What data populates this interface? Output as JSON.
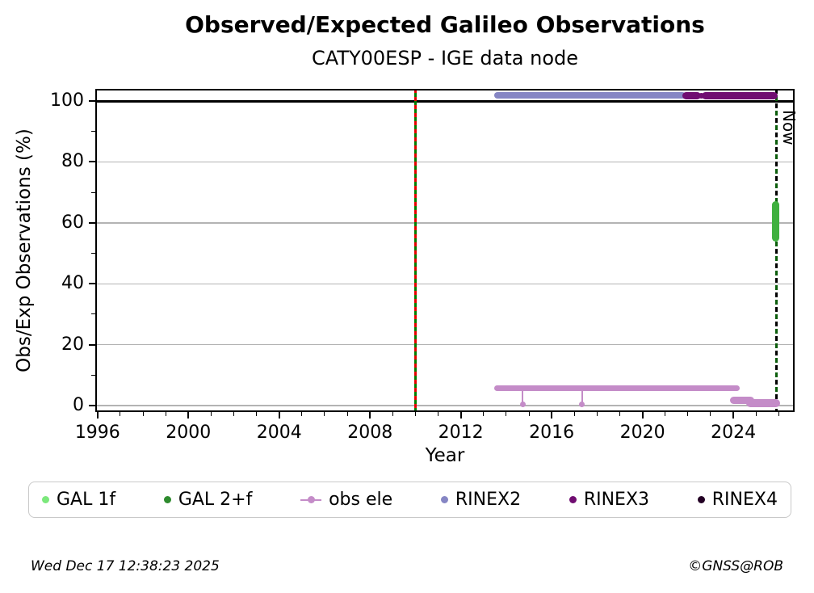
{
  "footer": {
    "timestamp": "Wed Dec 17 12:38:23 2025",
    "credit": "©GNSS@ROB"
  },
  "chart_data": {
    "type": "scatter",
    "title": "Observed/Expected Galileo Observations",
    "subtitle": "CATY00ESP - IGE data node",
    "xlabel": "Year",
    "ylabel": "Obs/Exp Observations (%)",
    "xlim": [
      1995.9,
      2026.7
    ],
    "ylim": [
      -2.1,
      104.0
    ],
    "x_major_ticks": [
      1996,
      2000,
      2004,
      2008,
      2012,
      2016,
      2020,
      2024
    ],
    "x_minor_step": 1,
    "y_major_ticks": [
      0,
      20,
      40,
      60,
      80,
      100
    ],
    "y_minor_step": 10,
    "grid": {
      "light_lines_y": [
        0,
        20,
        40,
        60,
        80
      ],
      "dark_lines_y": [
        100
      ],
      "light_color": "#b3b3b3",
      "dark_color": "#000000"
    },
    "annotations": {
      "deployment_line": {
        "x": 2010.0,
        "base_color": "#007c00",
        "dash_color": "#e60000"
      },
      "now_line": {
        "x": 2025.9,
        "label": "Now",
        "dash_colors": [
          "#000000",
          "#0a5d0a"
        ]
      }
    },
    "series": [
      {
        "name": "GAL 1f",
        "color": "#7ce87c",
        "marker": "dot",
        "segments": [],
        "points": [],
        "drops": [],
        "vclusters": []
      },
      {
        "name": "GAL 2+f",
        "color": "#2e8b2e",
        "plot_color": "#3fb03f",
        "marker": "dot",
        "segments": [],
        "points": [],
        "drops": [],
        "vclusters": [
          {
            "x": 2025.85,
            "y1": 55.0,
            "y2": 66.0,
            "w": 9
          }
        ]
      },
      {
        "name": "obs ele",
        "color": "#c48cc8",
        "marker": "dot-line",
        "segments": [
          {
            "x1": 2013.6,
            "x2": 2024.15,
            "y": 5.8,
            "w": 7
          },
          {
            "x1": 2024.0,
            "x2": 2024.75,
            "y": 1.8,
            "w": 9
          },
          {
            "x1": 2024.75,
            "x2": 2025.88,
            "y": 0.9,
            "w": 10
          }
        ],
        "points": [],
        "drops": [
          {
            "x": 2014.73,
            "y_top": 5.8,
            "y_bot": 0.5
          },
          {
            "x": 2017.33,
            "y_top": 5.8,
            "y_bot": 0.5
          }
        ],
        "vclusters": []
      },
      {
        "name": "RINEX2",
        "color": "#8686c4",
        "marker": "dot",
        "segments": [
          {
            "x1": 2013.6,
            "x2": 2021.77,
            "y": 101.8,
            "w": 8
          }
        ],
        "points": [],
        "drops": [],
        "vclusters": []
      },
      {
        "name": "RINEX3",
        "color": "#700d71",
        "marker": "dot",
        "segments": [
          {
            "x1": 2021.9,
            "x2": 2022.4,
            "y": 101.8,
            "w": 9
          },
          {
            "x1": 2022.76,
            "x2": 2025.8,
            "y": 101.8,
            "w": 9
          }
        ],
        "points": [
          {
            "x": 2022.58,
            "y": 101.8,
            "r": 3.5
          }
        ],
        "drops": [],
        "vclusters": []
      },
      {
        "name": "RINEX4",
        "color": "#230024",
        "marker": "dot",
        "segments": [],
        "points": [],
        "drops": [],
        "vclusters": []
      }
    ]
  }
}
